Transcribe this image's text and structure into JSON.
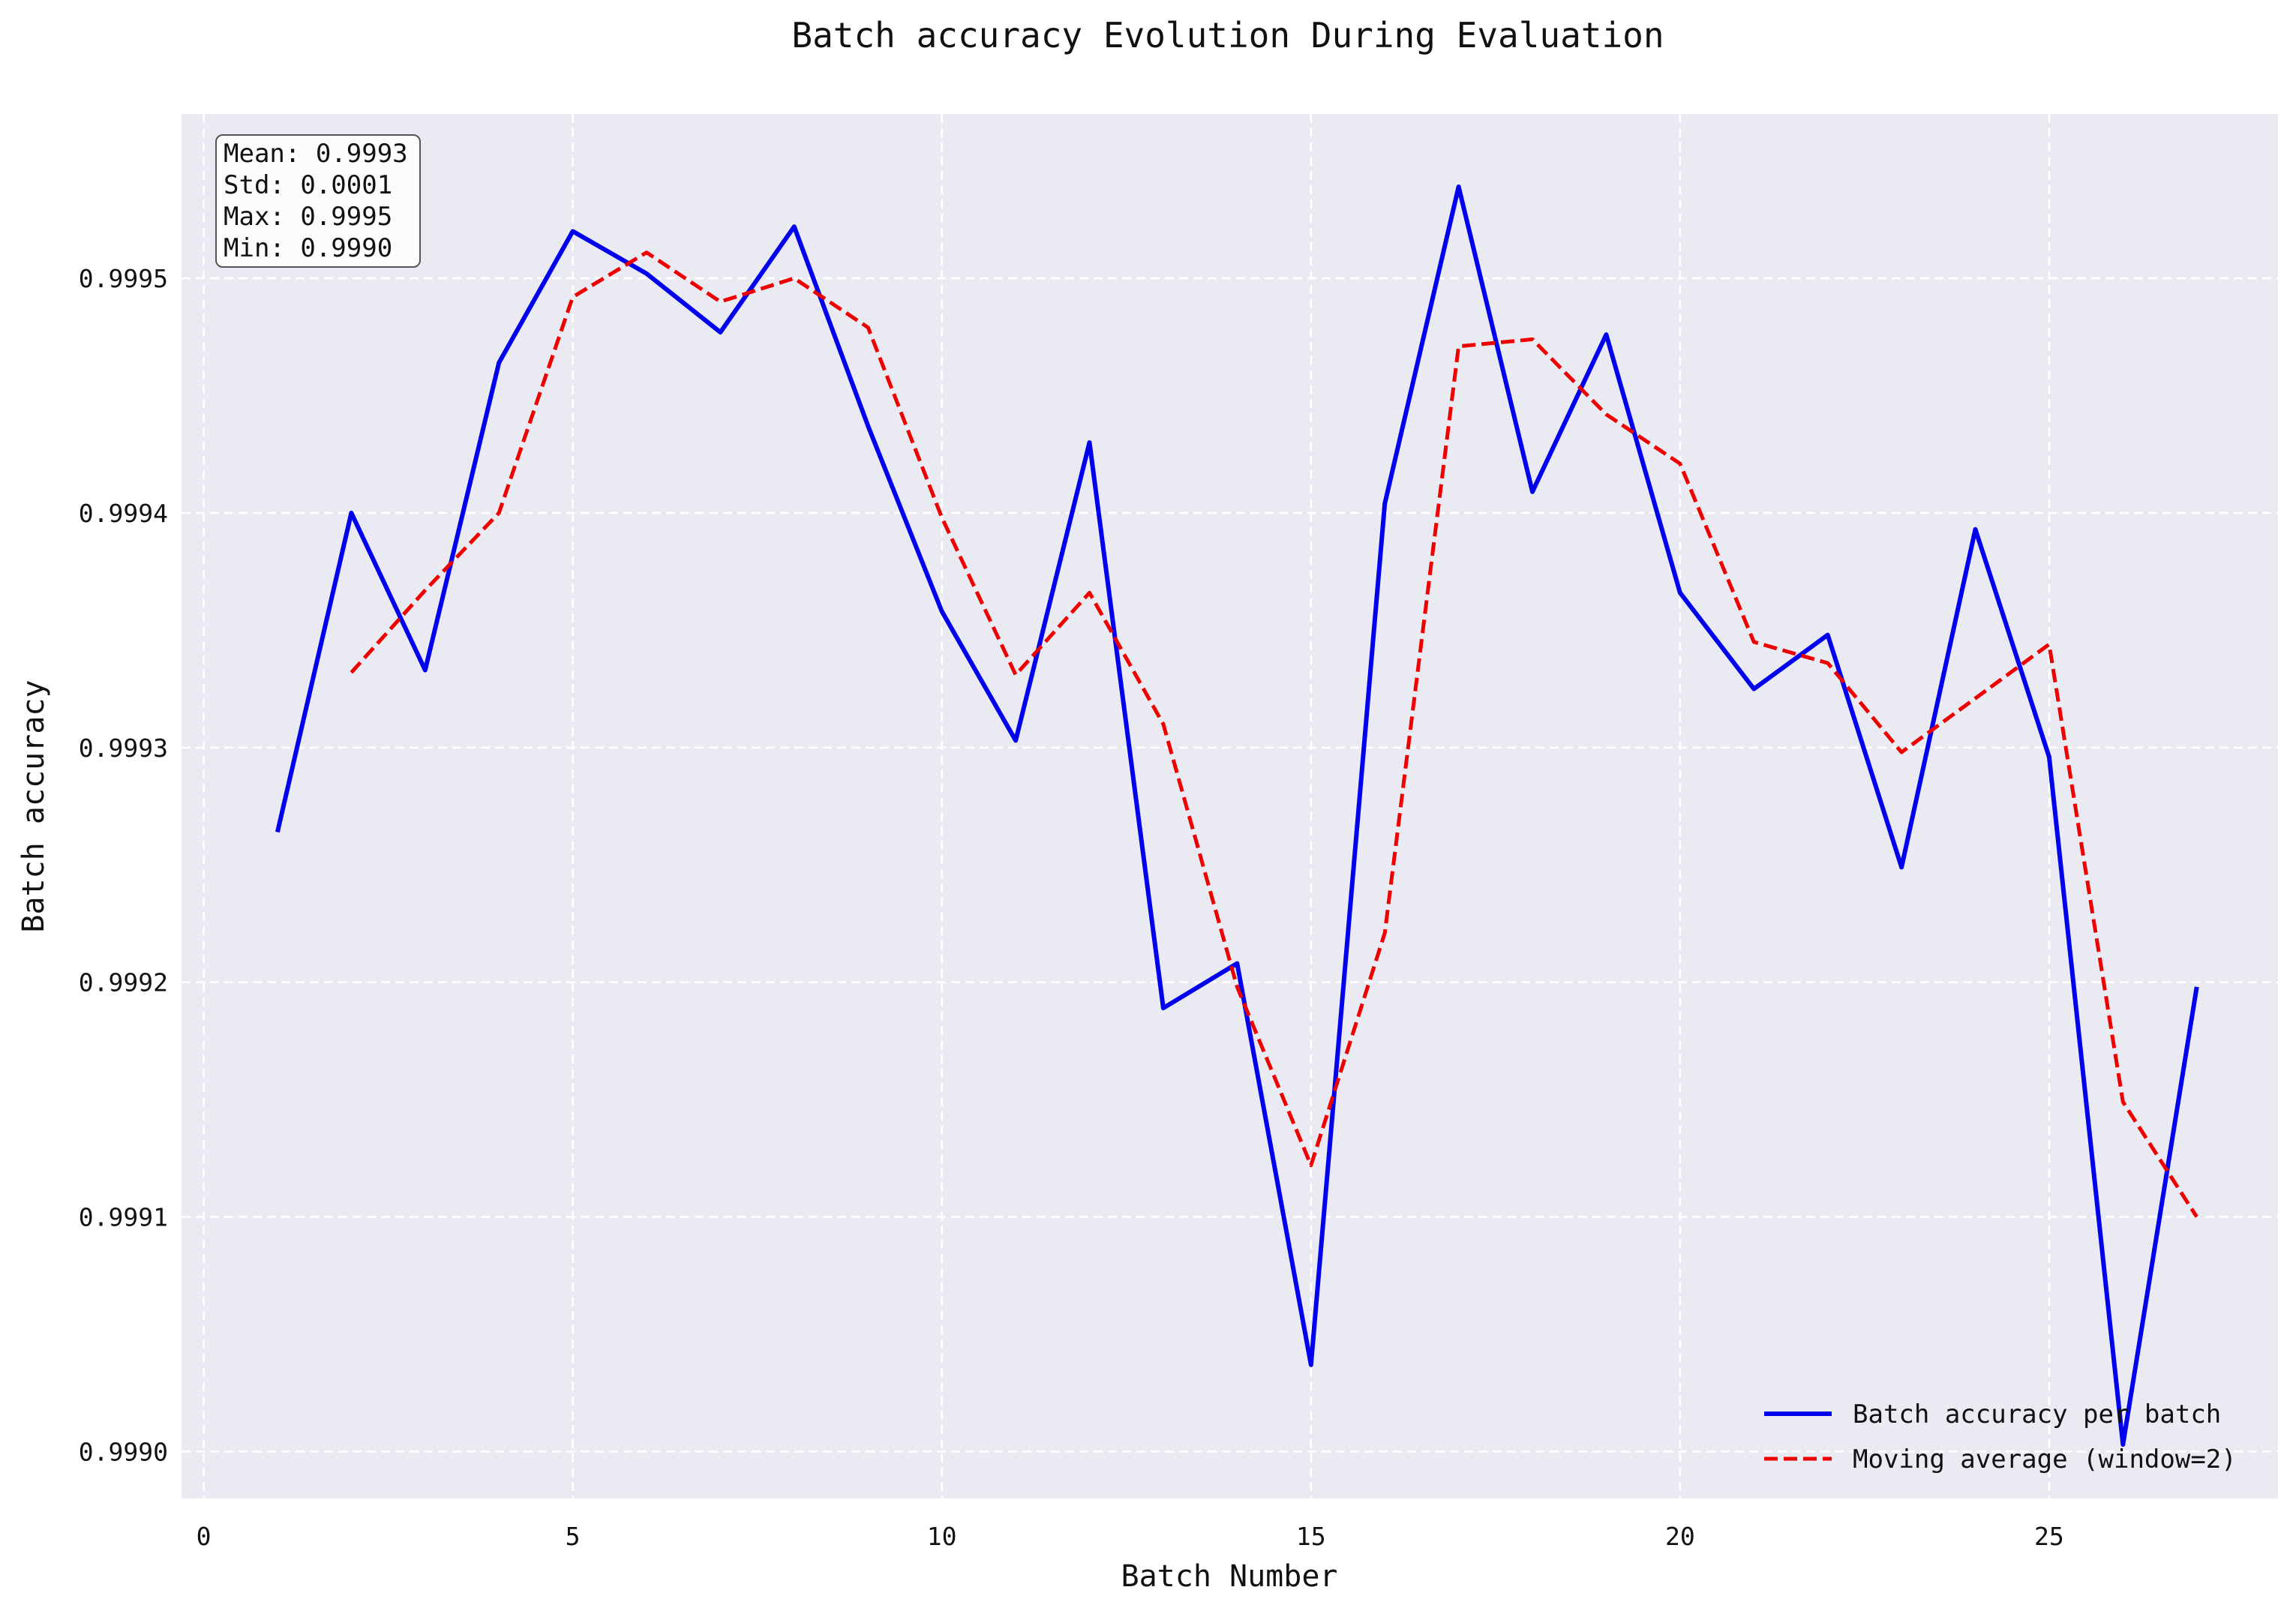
{
  "chart_data": {
    "type": "line",
    "title": "Batch accuracy Evolution During Evaluation",
    "xlabel": "Batch Number",
    "ylabel": "Batch accuracy",
    "xlim": [
      -0.3,
      28.1
    ],
    "ylim": [
      0.99898,
      0.99957
    ],
    "xticks": [
      0,
      5,
      10,
      15,
      20,
      25
    ],
    "yticks": [
      0.999,
      0.9991,
      0.9992,
      0.9993,
      0.9994,
      0.9995
    ],
    "xtick_labels": [
      "0",
      "5",
      "10",
      "15",
      "20",
      "25"
    ],
    "ytick_labels": [
      "0.9990",
      "0.9991",
      "0.9992",
      "0.9993",
      "0.9994",
      "0.9995"
    ],
    "grid": true,
    "legend_position": "bottom-right",
    "background_color": "#eaeaf2",
    "stats": [
      "Mean: 0.9993",
      "Std: 0.0001",
      "Max: 0.9995",
      "Min: 0.9990"
    ],
    "series": [
      {
        "name": "Batch accuracy per batch",
        "color": "#0000ee",
        "style": "solid",
        "x": [
          1,
          2,
          3,
          4,
          5,
          6,
          7,
          8,
          9,
          10,
          11,
          12,
          13,
          14,
          15,
          16,
          17,
          18,
          19,
          20,
          21,
          22,
          23,
          24,
          25,
          26,
          27
        ],
        "values": [
          0.999264,
          0.9994,
          0.999333,
          0.999464,
          0.99952,
          0.999502,
          0.999477,
          0.999522,
          0.999437,
          0.999358,
          0.999303,
          0.99943,
          0.999189,
          0.999208,
          0.999037,
          0.999404,
          0.999539,
          0.999409,
          0.999476,
          0.999366,
          0.999325,
          0.999348,
          0.999249,
          0.999393,
          0.999296,
          0.999003,
          0.999198
        ]
      },
      {
        "name": "Moving average (window=2)",
        "color": "#ee0000",
        "style": "dashed",
        "x": [
          2,
          3,
          4,
          5,
          6,
          7,
          8,
          9,
          10,
          11,
          12,
          13,
          14,
          15,
          16,
          17,
          18,
          19,
          20,
          21,
          22,
          23,
          24,
          25,
          26,
          27
        ],
        "values": [
          0.999332,
          0.999367,
          0.9994,
          0.999492,
          0.999511,
          0.99949,
          0.9995,
          0.999479,
          0.999398,
          0.999331,
          0.999366,
          0.99931,
          0.999198,
          0.999122,
          0.999221,
          0.999471,
          0.999474,
          0.999442,
          0.999421,
          0.999345,
          0.999336,
          0.999298,
          0.999321,
          0.999344,
          0.999149,
          0.9991
        ]
      }
    ]
  }
}
